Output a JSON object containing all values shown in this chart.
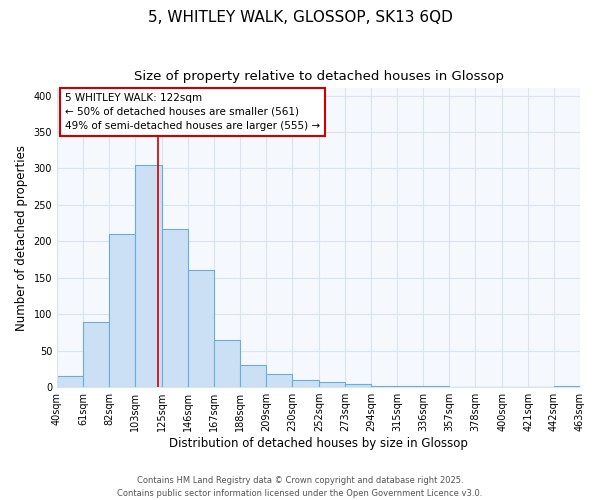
{
  "title": "5, WHITLEY WALK, GLOSSOP, SK13 6QD",
  "subtitle": "Size of property relative to detached houses in Glossop",
  "xlabel": "Distribution of detached houses by size in Glossop",
  "ylabel": "Number of detached properties",
  "bin_edges": [
    40,
    61,
    82,
    103,
    125,
    146,
    167,
    188,
    209,
    230,
    252,
    273,
    294,
    315,
    336,
    357,
    378,
    400,
    421,
    442,
    463
  ],
  "bar_heights": [
    15,
    90,
    210,
    305,
    217,
    160,
    65,
    30,
    18,
    10,
    7,
    4,
    2,
    1,
    1,
    0,
    0,
    0,
    0,
    1
  ],
  "bar_color": "#cce0f5",
  "bar_edge_color": "#6aaed6",
  "property_line_x": 122,
  "annotation_text": "5 WHITLEY WALK: 122sqm\n← 50% of detached houses are smaller (561)\n49% of semi-detached houses are larger (555) →",
  "annotation_box_color": "#cc0000",
  "ylim": [
    0,
    410
  ],
  "yticks": [
    0,
    50,
    100,
    150,
    200,
    250,
    300,
    350,
    400
  ],
  "tick_labels": [
    "40sqm",
    "61sqm",
    "82sqm",
    "103sqm",
    "125sqm",
    "146sqm",
    "167sqm",
    "188sqm",
    "209sqm",
    "230sqm",
    "252sqm",
    "273sqm",
    "294sqm",
    "315sqm",
    "336sqm",
    "357sqm",
    "378sqm",
    "400sqm",
    "421sqm",
    "442sqm",
    "463sqm"
  ],
  "background_color": "#ffffff",
  "plot_bg_color": "#f5f8fc",
  "grid_color": "#d8e4ee",
  "footer_line1": "Contains HM Land Registry data © Crown copyright and database right 2025.",
  "footer_line2": "Contains public sector information licensed under the Open Government Licence v3.0.",
  "title_fontsize": 11,
  "subtitle_fontsize": 9.5,
  "axis_label_fontsize": 8.5,
  "tick_fontsize": 7,
  "annotation_fontsize": 7.5,
  "footer_fontsize": 6
}
